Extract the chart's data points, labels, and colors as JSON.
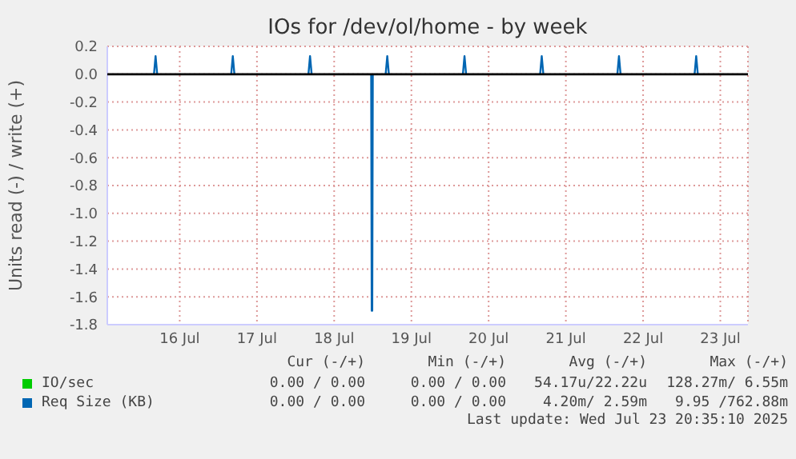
{
  "chart_data": {
    "type": "line",
    "title": "IOs for /dev/ol/home - by week",
    "ylabel": "Units read (-) / write (+)",
    "xlim": [
      "2025-07-15T13:30",
      "2025-07-23T20:35"
    ],
    "xticks": [
      {
        "value": "2025-07-16T12:00",
        "label": "16 Jul"
      },
      {
        "value": "2025-07-17T12:00",
        "label": "17 Jul"
      },
      {
        "value": "2025-07-18T12:00",
        "label": "18 Jul"
      },
      {
        "value": "2025-07-19T12:00",
        "label": "19 Jul"
      },
      {
        "value": "2025-07-20T12:00",
        "label": "20 Jul"
      },
      {
        "value": "2025-07-21T12:00",
        "label": "21 Jul"
      },
      {
        "value": "2025-07-22T12:00",
        "label": "22 Jul"
      },
      {
        "value": "2025-07-23T12:00",
        "label": "23 Jul"
      }
    ],
    "ylim": [
      -1.8,
      0.2
    ],
    "yticks": [
      {
        "value": 0.2,
        "label": "0.2"
      },
      {
        "value": 0,
        "label": "0.0"
      },
      {
        "value": -0.2,
        "label": "-0.2"
      },
      {
        "value": -0.4,
        "label": "-0.4"
      },
      {
        "value": -0.6,
        "label": "-0.6"
      },
      {
        "value": -0.8,
        "label": "-0.8"
      },
      {
        "value": -1.0,
        "label": "-1.0"
      },
      {
        "value": -1.2,
        "label": "-1.2"
      },
      {
        "value": -1.4,
        "label": "-1.4"
      },
      {
        "value": -1.6,
        "label": "-1.6"
      },
      {
        "value": -1.8,
        "label": "-1.8"
      }
    ],
    "grid": true,
    "legend": "bottom left",
    "marker": "none",
    "line_style": "solid",
    "ref_lines": [
      {
        "axis": "y",
        "value": 0,
        "color": "#000000"
      }
    ],
    "series": [
      {
        "name": "IO/sec",
        "color": "#00cc00"
      },
      {
        "name": "Req Size (KB)",
        "color": "#0066b3",
        "x": [
          "2025-07-16T04:00",
          "2025-07-16T04:30",
          "2025-07-16T05:00",
          "2025-07-16T12:00",
          "2025-07-17T04:00",
          "2025-07-17T04:30",
          "2025-07-17T05:00",
          "2025-07-17T12:00",
          "2025-07-18T04:00",
          "2025-07-18T04:30",
          "2025-07-18T05:00",
          "2025-07-18T12:00",
          "2025-07-18T23:30",
          "2025-07-18T23:40",
          "2025-07-18T23:50",
          "2025-07-19T00:00",
          "2025-07-19T02:00",
          "2025-07-19T04:00",
          "2025-07-19T04:30",
          "2025-07-19T05:00",
          "2025-07-19T12:00",
          "2025-07-20T04:00",
          "2025-07-20T04:30",
          "2025-07-20T05:00",
          "2025-07-20T12:00",
          "2025-07-21T04:00",
          "2025-07-21T04:30",
          "2025-07-21T05:00",
          "2025-07-21T12:00",
          "2025-07-22T04:00",
          "2025-07-22T04:30",
          "2025-07-22T05:00",
          "2025-07-22T12:00",
          "2025-07-23T04:00",
          "2025-07-23T04:30",
          "2025-07-23T05:00"
        ],
        "values": [
          0,
          0.13,
          0,
          null,
          0,
          0.13,
          0,
          null,
          0,
          0.13,
          0,
          null,
          0,
          -1.7,
          -1.7,
          0,
          null,
          0,
          0.13,
          0,
          null,
          0,
          0.13,
          0,
          null,
          0,
          0.13,
          0,
          null,
          0,
          0.13,
          0,
          null,
          0,
          0.13,
          0
        ]
      }
    ],
    "annotations": [
      "Cur (-/+)",
      "Min (-/+)",
      "Avg (-/+)",
      "Max (-/+)",
      "0.00 / 0.00",
      "0.00 / 0.00",
      "54.17u/22.22u",
      "128.27m/ 6.55m",
      "0.00 / 0.00",
      "0.00 / 0.00",
      "4.20m/ 2.59m",
      "9.95 /762.88m",
      "Last update: Wed Jul 23 20:35:10 2025"
    ]
  }
}
